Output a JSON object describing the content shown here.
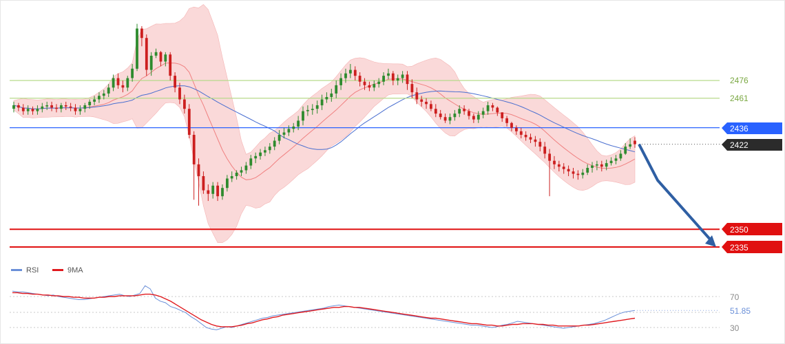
{
  "chart_data": [
    {
      "type": "candlestick",
      "title": "",
      "xlabel": "",
      "ylabel": "",
      "ylim": [
        2305,
        2522
      ],
      "grid": false,
      "bars": 90,
      "price": {
        "open": [
          2452,
          2455,
          2453,
          2450,
          2452,
          2450,
          2452,
          2454,
          2455,
          2453,
          2452,
          2455,
          2454,
          2453,
          2450,
          2452,
          2455,
          2458,
          2460,
          2463,
          2465,
          2470,
          2478,
          2472,
          2470,
          2478,
          2486,
          2520,
          2512,
          2485,
          2497,
          2500,
          2492,
          2498,
          2480,
          2470,
          2460,
          2452,
          2430,
          2405,
          2395,
          2383,
          2380,
          2387,
          2378,
          2385,
          2393,
          2395,
          2398,
          2400,
          2404,
          2410,
          2412,
          2415,
          2417,
          2420,
          2425,
          2430,
          2432,
          2435,
          2437,
          2442,
          2450,
          2451,
          2452,
          2455,
          2460,
          2462,
          2465,
          2472,
          2478,
          2482,
          2485,
          2480,
          2475,
          2472,
          2470,
          2473,
          2475,
          2480,
          2482,
          2476,
          2478,
          2481,
          2473,
          2466,
          2460,
          2458,
          2456,
          2452
        ],
        "close": [
          2455,
          2453,
          2450,
          2452,
          2450,
          2452,
          2454,
          2455,
          2453,
          2452,
          2455,
          2454,
          2453,
          2450,
          2452,
          2455,
          2458,
          2460,
          2463,
          2465,
          2470,
          2478,
          2472,
          2470,
          2478,
          2486,
          2520,
          2512,
          2485,
          2497,
          2500,
          2492,
          2498,
          2480,
          2470,
          2460,
          2452,
          2430,
          2405,
          2395,
          2383,
          2380,
          2387,
          2378,
          2385,
          2393,
          2395,
          2398,
          2400,
          2404,
          2410,
          2412,
          2415,
          2417,
          2420,
          2425,
          2430,
          2432,
          2435,
          2437,
          2442,
          2450,
          2451,
          2452,
          2455,
          2460,
          2462,
          2465,
          2472,
          2478,
          2482,
          2485,
          2480,
          2475,
          2472,
          2470,
          2473,
          2475,
          2480,
          2482,
          2476,
          2478,
          2481,
          2473,
          2466,
          2460,
          2458,
          2456,
          2452,
          2448
        ],
        "high": [
          2458,
          2457,
          2456,
          2455,
          2454,
          2455,
          2457,
          2458,
          2458,
          2456,
          2457,
          2458,
          2457,
          2456,
          2455,
          2457,
          2460,
          2463,
          2466,
          2468,
          2473,
          2481,
          2482,
          2476,
          2480,
          2490,
          2524,
          2522,
          2515,
          2500,
          2503,
          2501,
          2500,
          2500,
          2483,
          2474,
          2464,
          2456,
          2433,
          2410,
          2399,
          2388,
          2390,
          2390,
          2388,
          2396,
          2399,
          2400,
          2403,
          2407,
          2413,
          2415,
          2418,
          2420,
          2423,
          2428,
          2434,
          2436,
          2438,
          2440,
          2446,
          2454,
          2455,
          2456,
          2459,
          2464,
          2466,
          2469,
          2476,
          2482,
          2486,
          2490,
          2488,
          2483,
          2478,
          2475,
          2476,
          2478,
          2483,
          2486,
          2484,
          2481,
          2484,
          2484,
          2477,
          2470,
          2463,
          2461,
          2459,
          2456
        ],
        "low": [
          2449,
          2450,
          2447,
          2447,
          2447,
          2447,
          2449,
          2451,
          2450,
          2449,
          2449,
          2451,
          2450,
          2447,
          2447,
          2449,
          2452,
          2455,
          2457,
          2460,
          2462,
          2467,
          2469,
          2466,
          2467,
          2475,
          2484,
          2505,
          2480,
          2480,
          2495,
          2488,
          2488,
          2476,
          2466,
          2456,
          2448,
          2427,
          2375,
          2370,
          2380,
          2374,
          2376,
          2374,
          2375,
          2382,
          2390,
          2392,
          2395,
          2397,
          2401,
          2406,
          2409,
          2412,
          2414,
          2417,
          2422,
          2427,
          2429,
          2432,
          2434,
          2438,
          2446,
          2447,
          2448,
          2451,
          2457,
          2458,
          2461,
          2468,
          2474,
          2478,
          2476,
          2471,
          2468,
          2467,
          2467,
          2470,
          2472,
          2477,
          2472,
          2472,
          2474,
          2468,
          2461,
          2456,
          2454,
          2452,
          2450,
          2445
        ]
      },
      "price_b": {
        "open": [
          2448,
          2445,
          2442,
          2445,
          2448,
          2452,
          2450,
          2446,
          2443,
          2447,
          2450,
          2455,
          2453,
          2449,
          2444,
          2440,
          2436,
          2433,
          2430,
          2428,
          2426,
          2424,
          2420,
          2414,
          2408,
          2405,
          2403,
          2401,
          2399,
          2397,
          2396,
          2398,
          2402,
          2404,
          2405,
          2403,
          2406,
          2408,
          2410,
          2414,
          2420,
          2425
        ],
        "close": [
          2445,
          2442,
          2445,
          2448,
          2452,
          2450,
          2446,
          2443,
          2447,
          2450,
          2455,
          2453,
          2449,
          2444,
          2440,
          2436,
          2433,
          2430,
          2428,
          2426,
          2424,
          2420,
          2414,
          2408,
          2405,
          2403,
          2401,
          2399,
          2397,
          2396,
          2398,
          2402,
          2404,
          2405,
          2403,
          2406,
          2408,
          2410,
          2414,
          2420,
          2422,
          2422
        ],
        "high": [
          2451,
          2448,
          2448,
          2451,
          2455,
          2455,
          2452,
          2448,
          2450,
          2453,
          2458,
          2457,
          2454,
          2449,
          2446,
          2441,
          2438,
          2436,
          2433,
          2431,
          2429,
          2427,
          2424,
          2418,
          2412,
          2408,
          2406,
          2404,
          2402,
          2400,
          2401,
          2405,
          2407,
          2408,
          2408,
          2409,
          2411,
          2413,
          2417,
          2423,
          2427,
          2428
        ],
        "low": [
          2443,
          2440,
          2439,
          2442,
          2445,
          2447,
          2443,
          2440,
          2440,
          2444,
          2447,
          2450,
          2446,
          2441,
          2437,
          2433,
          2430,
          2427,
          2425,
          2423,
          2420,
          2416,
          2410,
          2378,
          2401,
          2399,
          2397,
          2395,
          2393,
          2392,
          2393,
          2396,
          2398,
          2400,
          2399,
          2400,
          2404,
          2405,
          2408,
          2413,
          2418,
          2419
        ]
      },
      "levels": {
        "resistance": [
          2476,
          2461
        ],
        "pivot": 2436,
        "current": 2422,
        "support": [
          2350,
          2335
        ]
      },
      "forecast_arrow": {
        "from": 2422,
        "to": 2335
      },
      "colors": {
        "up": "#2e8b2e",
        "down": "#cc1f1f",
        "band": "#f8c9c9",
        "resistance": "#b7d98a",
        "pivot": "#2962ff",
        "support": "#e01010",
        "arrow": "#2f5fa3",
        "current_tag": "#2b2b2b"
      }
    },
    {
      "type": "line",
      "legend": [
        "RSI",
        "9MA"
      ],
      "ylim": [
        22,
        88
      ],
      "yticks": [
        "70",
        "30"
      ],
      "current_value": "51.85",
      "series": [
        {
          "name": "RSI",
          "color": "#6a8fd8",
          "values": [
            77,
            76,
            76,
            75,
            74,
            73,
            72,
            71,
            72,
            70,
            69,
            68,
            67,
            66,
            66,
            67,
            68,
            69,
            70,
            71,
            72,
            73,
            71,
            70,
            72,
            74,
            84,
            80,
            68,
            64,
            62,
            57,
            55,
            52,
            49,
            44,
            40,
            35,
            30,
            28,
            27,
            29,
            31,
            30,
            32,
            34,
            36,
            38,
            40,
            42,
            43,
            45,
            46,
            47,
            48,
            49,
            50,
            51,
            52,
            53,
            54,
            55,
            57,
            58,
            59,
            58,
            57,
            56,
            55,
            54,
            53,
            52,
            51,
            50,
            49,
            48,
            47,
            46,
            45,
            44,
            43,
            42,
            41,
            40,
            39,
            38,
            37,
            36,
            35,
            34,
            33,
            33,
            32,
            31,
            30,
            31,
            33,
            34,
            36,
            38,
            37,
            36,
            35,
            34,
            33,
            32,
            31,
            30,
            29,
            30,
            31,
            32,
            33,
            34,
            35,
            37,
            39,
            42,
            45,
            48,
            50,
            51,
            52
          ]
        },
        {
          "name": "9MA",
          "color": "#e0191e",
          "values": [
            75,
            75,
            74,
            74,
            73,
            73,
            72,
            72,
            71,
            71,
            70,
            70,
            69,
            69,
            68,
            68,
            68,
            69,
            69,
            70,
            70,
            71,
            71,
            71,
            71,
            72,
            73,
            73,
            72,
            70,
            67,
            64,
            60,
            56,
            52,
            48,
            44,
            40,
            37,
            34,
            32,
            31,
            31,
            31,
            32,
            33,
            35,
            36,
            38,
            40,
            41,
            43,
            44,
            46,
            47,
            48,
            49,
            50,
            51,
            52,
            53,
            54,
            55,
            56,
            56,
            57,
            57,
            56,
            56,
            55,
            54,
            53,
            52,
            51,
            50,
            49,
            48,
            47,
            46,
            45,
            44,
            43,
            42,
            42,
            41,
            40,
            39,
            38,
            37,
            36,
            35,
            35,
            34,
            33,
            33,
            32,
            32,
            33,
            34,
            34,
            35,
            35,
            35,
            34,
            34,
            33,
            33,
            32,
            32,
            32,
            32,
            32,
            33,
            33,
            34,
            35,
            36,
            37,
            38,
            39,
            40,
            41,
            42
          ]
        }
      ]
    }
  ],
  "labels": {
    "r1": "2476",
    "r2": "2461",
    "pivot": "2436",
    "current": "2422",
    "s1": "2350",
    "s2": "2335",
    "legend_rsi": "RSI",
    "legend_ma": "9MA",
    "rsi_70": "70",
    "rsi_30": "30",
    "rsi_value": "51.85"
  }
}
